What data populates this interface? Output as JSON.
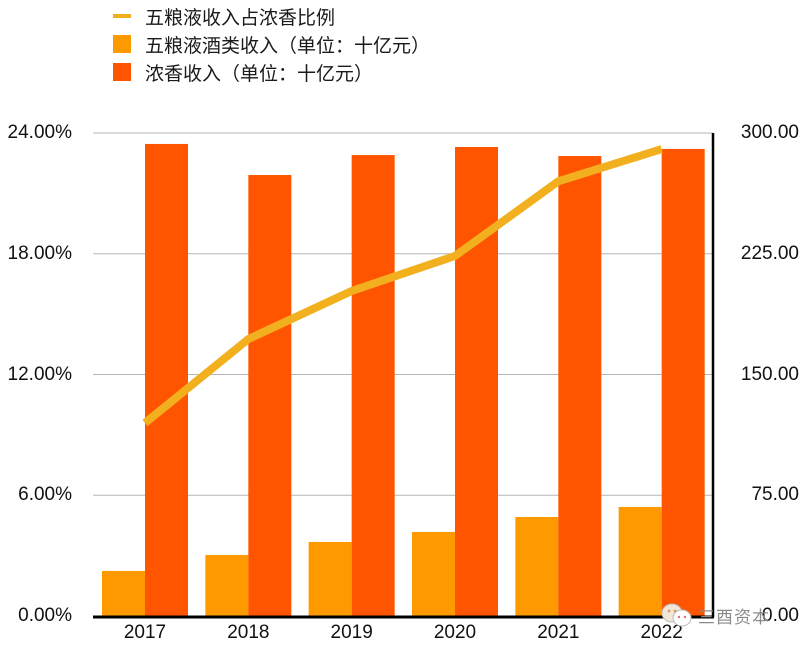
{
  "legend": [
    {
      "label": "五粮液收入占浓香比例",
      "type": "line",
      "color": "#F2B01E"
    },
    {
      "label": "五粮液酒类收入（单位：十亿元）",
      "type": "bar",
      "color": "#FF9900"
    },
    {
      "label": "浓香收入（单位：十亿元）",
      "type": "bar",
      "color": "#FF5500"
    }
  ],
  "axes": {
    "left_ticks": [
      "0.00%",
      "6.00%",
      "12.00%",
      "18.00%",
      "24.00%"
    ],
    "right_ticks": [
      "0.00",
      "75.00",
      "150.00",
      "225.00",
      "300.00"
    ],
    "x_ticks": [
      "2017",
      "2018",
      "2019",
      "2020",
      "2021",
      "2022"
    ]
  },
  "watermark": {
    "text": "三酉资本",
    "icon": "wechat-icon"
  },
  "chart_data": {
    "type": "bar",
    "title": "",
    "categories": [
      "2017",
      "2018",
      "2019",
      "2020",
      "2021",
      "2022"
    ],
    "series": [
      {
        "name": "五粮液酒类收入（单位：十亿元）",
        "type": "bar",
        "axis": "right",
        "color": "#FF9900",
        "values": [
          28.0,
          37.9,
          46.0,
          52.2,
          61.5,
          67.7
        ]
      },
      {
        "name": "浓香收入（单位：十亿元）",
        "type": "bar",
        "axis": "right",
        "color": "#FF5500",
        "values": [
          293.2,
          273.9,
          286.3,
          291.3,
          285.7,
          290.1
        ]
      },
      {
        "name": "五粮液收入占浓香比例",
        "type": "line",
        "axis": "left",
        "color": "#F2B01E",
        "values": [
          9.59,
          13.76,
          16.15,
          17.89,
          21.6,
          23.2
        ]
      }
    ],
    "xlabel": "",
    "ylabel_left": "",
    "ylabel_right": "",
    "ylim_left": [
      0,
      24
    ],
    "ylim_right": [
      0,
      300
    ],
    "left_tick_format": "percent_2dp",
    "grid": true,
    "legend_position": "top-left"
  }
}
